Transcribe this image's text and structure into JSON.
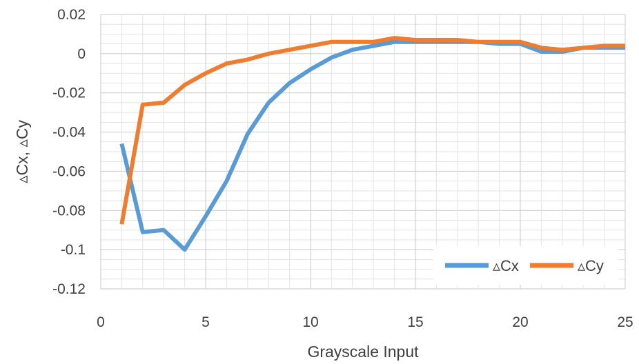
{
  "chart_data": {
    "type": "line",
    "xlabel": "Grayscale Input",
    "ylabel": "▵Cx, ▵Cy",
    "xlim": [
      0,
      25
    ],
    "ylim": [
      -0.12,
      0.02
    ],
    "xticks": [
      0,
      5,
      10,
      15,
      20,
      25
    ],
    "yticks": [
      0.02,
      0,
      -0.02,
      -0.04,
      -0.06,
      -0.08,
      -0.1,
      -0.12
    ],
    "ytick_labels": [
      "0.02",
      "0",
      "-0.02",
      "-0.04",
      "-0.06",
      "-0.08",
      "-0.1",
      "-0.12"
    ],
    "xtick_labels": [
      "0",
      "5",
      "10",
      "15",
      "20",
      "25"
    ],
    "grid": true,
    "legend_position": "bottom-right",
    "series": [
      {
        "name": "▵Cx",
        "color": "#5b9bd5",
        "x": [
          1,
          2,
          3,
          4,
          5,
          6,
          7,
          8,
          9,
          10,
          11,
          12,
          13,
          14,
          15,
          16,
          17,
          18,
          19,
          20,
          21,
          22,
          23,
          24,
          25
        ],
        "y": [
          -0.046,
          -0.091,
          -0.09,
          -0.1,
          -0.083,
          -0.065,
          -0.041,
          -0.025,
          -0.015,
          -0.008,
          -0.002,
          0.002,
          0.004,
          0.006,
          0.006,
          0.006,
          0.006,
          0.006,
          0.005,
          0.005,
          0.001,
          0.001,
          0.003,
          0.003,
          0.003
        ]
      },
      {
        "name": "▵Cy",
        "color": "#ed7d31",
        "x": [
          1,
          2,
          3,
          4,
          5,
          6,
          7,
          8,
          9,
          10,
          11,
          12,
          13,
          14,
          15,
          16,
          17,
          18,
          19,
          20,
          21,
          22,
          23,
          24,
          25
        ],
        "y": [
          -0.087,
          -0.026,
          -0.025,
          -0.016,
          -0.01,
          -0.005,
          -0.003,
          0.0,
          0.002,
          0.004,
          0.006,
          0.006,
          0.006,
          0.008,
          0.007,
          0.007,
          0.007,
          0.006,
          0.006,
          0.006,
          0.003,
          0.002,
          0.003,
          0.004,
          0.004
        ]
      }
    ]
  }
}
